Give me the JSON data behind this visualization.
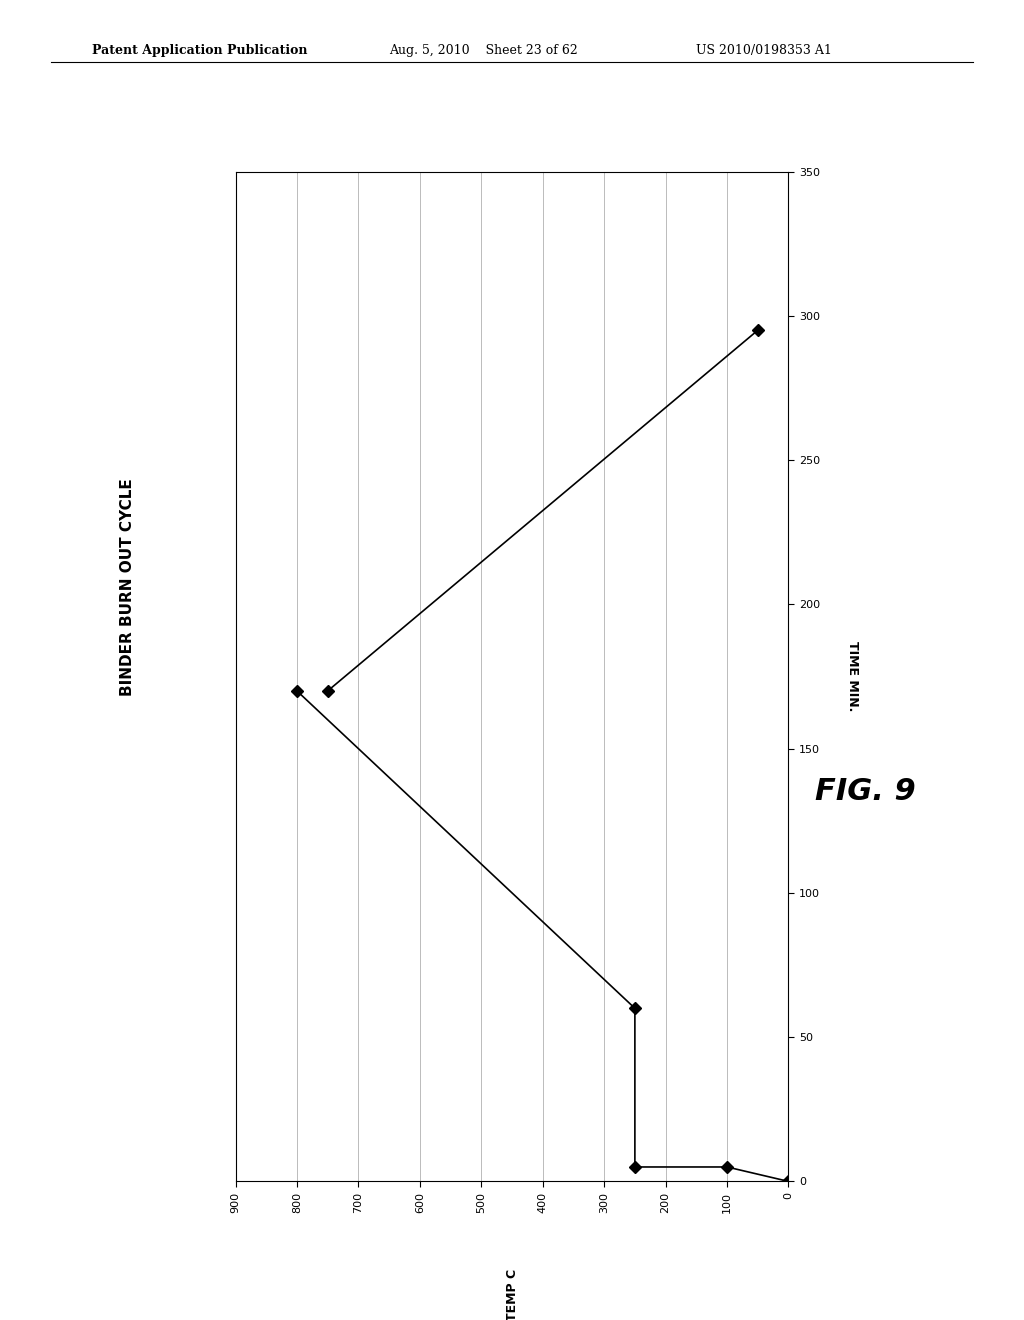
{
  "title": "BINDER BURN OUT CYCLE",
  "fig_label": "FIG. 9",
  "header_left": "Patent Application Publication",
  "header_center": "Aug. 5, 2010    Sheet 23 of 62",
  "header_right": "US 2010/0198353 A1",
  "xlabel": "TEMP C",
  "ylabel": "TIME MIN.",
  "x_ticks": [
    900,
    800,
    700,
    600,
    500,
    400,
    300,
    200,
    100,
    0
  ],
  "y_ticks": [
    0,
    50,
    100,
    150,
    200,
    250,
    300,
    350
  ],
  "xlim": [
    900,
    0
  ],
  "ylim": [
    0,
    350
  ],
  "line1_x": [
    800,
    250,
    250,
    100,
    0
  ],
  "line1_y": [
    170,
    60,
    5,
    5,
    0
  ],
  "line2_x": [
    750,
    50
  ],
  "line2_y": [
    170,
    295
  ],
  "marker_style": "D",
  "marker_size": 6,
  "line_color": "#000000",
  "background_color": "#ffffff",
  "grid_color": "#bbbbbb",
  "font_color": "#000000",
  "title_fontsize": 11,
  "axis_label_fontsize": 9,
  "tick_fontsize": 8,
  "header_fontsize_bold": 9,
  "header_fontsize": 9,
  "fig_label_fontsize": 22
}
